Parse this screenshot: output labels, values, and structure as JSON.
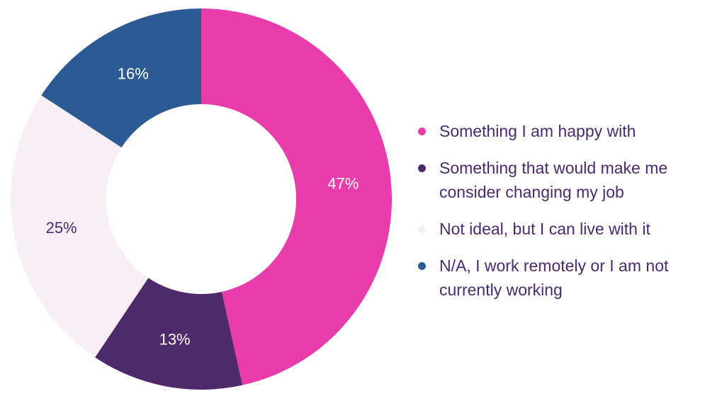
{
  "chart_data": {
    "type": "pie",
    "variant": "donut",
    "slices": [
      {
        "label": "Something I am happy with",
        "value": 47,
        "display": "47%",
        "color": "#e83cad",
        "label_color": "#ffffff"
      },
      {
        "label": "Something that would make me consider changing my job",
        "value": 13,
        "display": "13%",
        "color": "#4f2a6b",
        "label_color": "#ffffff"
      },
      {
        "label": "Not ideal, but I can live with it",
        "value": 25,
        "display": "25%",
        "color": "#f8eef5",
        "label_color": "#4a2a6e"
      },
      {
        "label": "N/A, I work remotely or I am not currently working",
        "value": 16,
        "display": "16%",
        "color": "#2c5b94",
        "label_color": "#ffffff"
      }
    ],
    "legend_position": "right"
  }
}
